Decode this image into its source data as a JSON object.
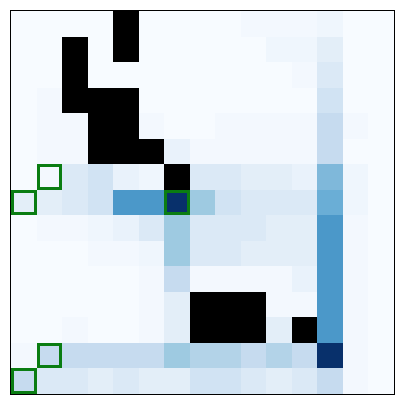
{
  "board": {
    "rows": 15,
    "cols": 15,
    "colors": {
      "wall": "#000000",
      "marker_border": "#0a7d12",
      "background": "#f7fbff"
    },
    "shades": [
      "#f7fbff",
      "#f3f8fe",
      "#eff6fd",
      "#e9f2fb",
      "#e3eef8",
      "#dbe9f6",
      "#d1e3f3",
      "#c6dbef",
      "#b3d3e8",
      "#9ecae1",
      "#7fb8da",
      "#6aaed6",
      "#4b98c9",
      "#3182bd",
      "#08306b"
    ],
    "grid": [
      [
        0,
        0,
        0,
        0,
        "W",
        0,
        0,
        0,
        0,
        1,
        1,
        1,
        2,
        0,
        0
      ],
      [
        0,
        0,
        "W",
        0,
        "W",
        0,
        0,
        0,
        0,
        0,
        2,
        2,
        4,
        0,
        0
      ],
      [
        0,
        0,
        "W",
        0,
        0,
        0,
        0,
        0,
        0,
        0,
        0,
        1,
        5,
        0,
        0
      ],
      [
        0,
        1,
        "W",
        "W",
        "W",
        0,
        0,
        0,
        0,
        0,
        0,
        0,
        6,
        0,
        0
      ],
      [
        0,
        1,
        1,
        "W",
        "W",
        1,
        0,
        0,
        1,
        1,
        1,
        1,
        7,
        1,
        0
      ],
      [
        0,
        1,
        1,
        "W",
        "W",
        "W",
        3,
        1,
        1,
        1,
        1,
        1,
        7,
        0,
        0
      ],
      [
        0,
        1,
        5,
        6,
        3,
        2,
        "W",
        5,
        5,
        4,
        4,
        3,
        10,
        2,
        0
      ],
      [
        4,
        4,
        5,
        6,
        12,
        12,
        14,
        9,
        6,
        5,
        5,
        5,
        11,
        2,
        0
      ],
      [
        0,
        1,
        1,
        2,
        3,
        5,
        9,
        5,
        5,
        5,
        4,
        4,
        12,
        1,
        0
      ],
      [
        0,
        0,
        0,
        1,
        1,
        2,
        9,
        5,
        5,
        4,
        4,
        4,
        12,
        1,
        0
      ],
      [
        0,
        0,
        0,
        0,
        0,
        1,
        7,
        1,
        1,
        1,
        1,
        3,
        12,
        1,
        0
      ],
      [
        0,
        0,
        0,
        0,
        0,
        1,
        4,
        "W",
        "W",
        "W",
        1,
        1,
        12,
        1,
        0
      ],
      [
        0,
        0,
        1,
        0,
        0,
        1,
        4,
        "W",
        "W",
        "W",
        4,
        "W",
        12,
        1,
        0
      ],
      [
        1,
        7,
        7,
        7,
        7,
        7,
        9,
        8,
        8,
        7,
        8,
        7,
        14,
        1,
        0
      ],
      [
        7,
        5,
        5,
        4,
        5,
        4,
        4,
        6,
        6,
        5,
        4,
        5,
        7,
        1,
        0
      ]
    ],
    "markers": [
      [
        6,
        1
      ],
      [
        7,
        0
      ],
      [
        7,
        6
      ],
      [
        13,
        1
      ],
      [
        14,
        0
      ]
    ]
  }
}
